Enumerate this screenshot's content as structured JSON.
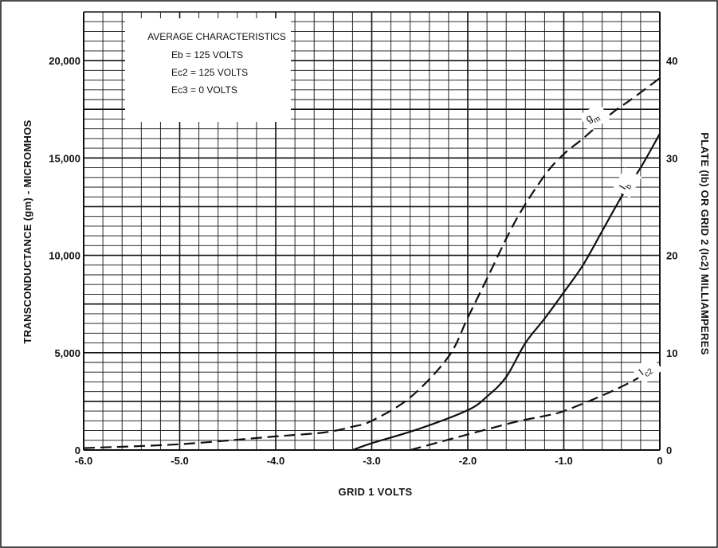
{
  "chart_data": {
    "type": "line",
    "info_box": {
      "title": "AVERAGE CHARACTERISTICS",
      "lines": [
        "Eb = 125 VOLTS",
        "Ec2 = 125 VOLTS",
        "Ec3 =   0 VOLTS"
      ]
    },
    "xlabel": "GRID 1 VOLTS",
    "ylabel_left": "TRANSCONDUCTANCE (gm) - MICROMHOS",
    "ylabel_right": "PLATE (Ib) OR GRID 2 (Ic2) MILLIAMPERES",
    "xlim": [
      -6.0,
      0
    ],
    "ylim_left": [
      0,
      22500
    ],
    "ylim_right": [
      0,
      45
    ],
    "x_ticks": [
      "-6.0",
      "-5.0",
      "-4.0",
      "-3.0",
      "-2.0",
      "-1.0",
      "0"
    ],
    "y_left_ticks": [
      "0",
      "5,000",
      "10,000",
      "15,000",
      "20,000"
    ],
    "y_right_ticks": [
      "0",
      "10",
      "20",
      "30",
      "40"
    ],
    "grid": true,
    "series": [
      {
        "name": "gm",
        "axis": "left",
        "style": "dashed",
        "x": [
          -6.0,
          -5.0,
          -4.0,
          -3.5,
          -3.2,
          -3.0,
          -2.6,
          -2.2,
          -2.0,
          -1.8,
          -1.5,
          -1.2,
          -1.0,
          -0.8,
          -0.5,
          -0.3,
          0
        ],
        "y": [
          100,
          300,
          700,
          900,
          1200,
          1500,
          2700,
          4800,
          6800,
          8800,
          11800,
          14100,
          15200,
          16000,
          17300,
          18000,
          19100
        ]
      },
      {
        "name": "Ib",
        "axis": "right",
        "style": "solid",
        "x": [
          -3.2,
          -3.0,
          -2.5,
          -2.0,
          -1.8,
          -1.6,
          -1.4,
          -1.2,
          -1.0,
          -0.8,
          -0.6,
          -0.4,
          -0.2,
          0
        ],
        "y": [
          0,
          0.7,
          2.2,
          4.1,
          5.5,
          7.5,
          11.0,
          13.5,
          16.2,
          19.0,
          22.5,
          26.0,
          29.0,
          32.5
        ]
      },
      {
        "name": "Ic2",
        "axis": "right",
        "style": "dashed",
        "x": [
          -2.6,
          -2.3,
          -2.0,
          -1.5,
          -1.2,
          -1.0,
          -0.6,
          -0.3,
          0
        ],
        "y": [
          0,
          0.8,
          1.6,
          2.9,
          3.5,
          4.0,
          5.6,
          7.0,
          8.7
        ]
      }
    ]
  }
}
